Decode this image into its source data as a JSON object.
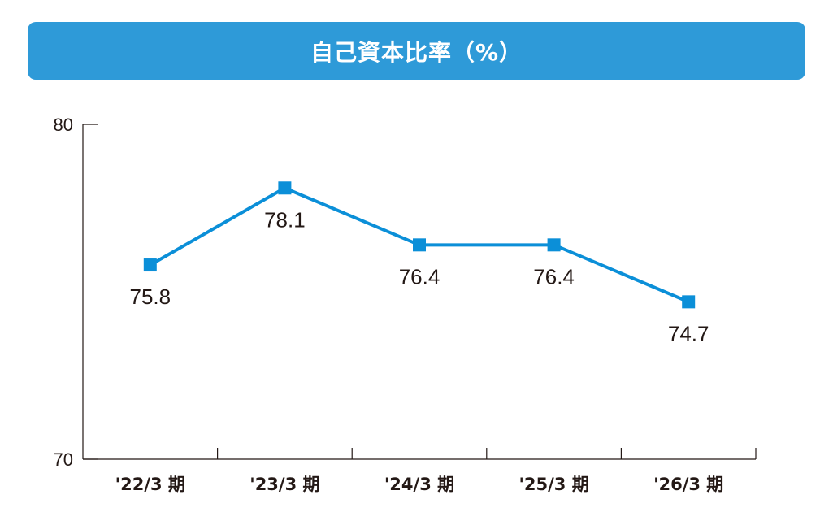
{
  "title": "自己資本比率（%）",
  "colors": {
    "banner": "#2e9ad8",
    "line": "#0b8fd8",
    "axis": "#231815",
    "text": "#231815"
  },
  "chart_data": {
    "type": "line",
    "title": "自己資本比率（%）",
    "xlabel": "",
    "ylabel": "",
    "categories": [
      "'22/3 期",
      "'23/3 期",
      "'24/3 期",
      "'25/3 期",
      "'26/3 期"
    ],
    "series": [
      {
        "values": [
          75.8,
          78.1,
          76.4,
          76.4,
          74.7
        ]
      }
    ],
    "data_labels": [
      "75.8",
      "78.1",
      "76.4",
      "76.4",
      "74.7"
    ],
    "ylim": [
      70,
      80
    ],
    "y_ticks": [
      70,
      80
    ],
    "y_tick_labels": [
      "70",
      "80"
    ],
    "grid": false,
    "marker": "square"
  }
}
